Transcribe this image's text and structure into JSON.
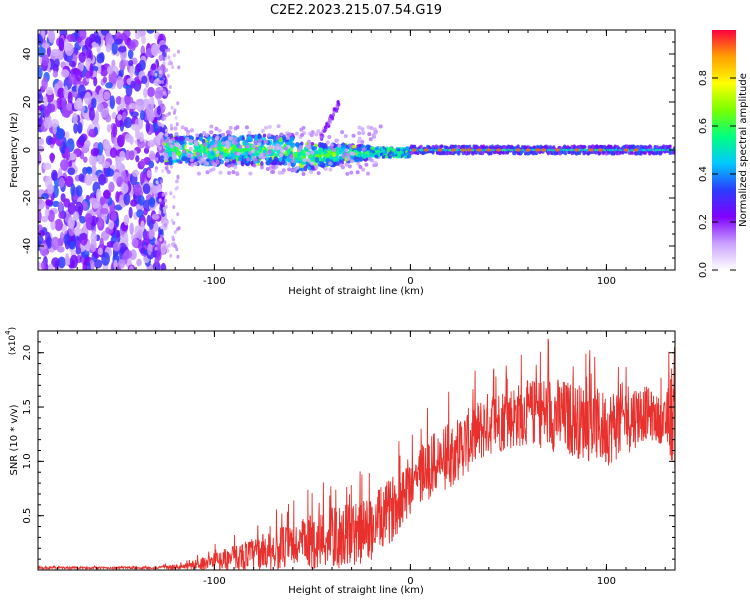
{
  "figure_title": "C2E2.2023.215.07.54.G19",
  "colors": {
    "snr_line": "#e8302c",
    "axis": "#000000"
  },
  "chart_data": [
    {
      "type": "heatmap",
      "name": "spectrogram",
      "title": "C2E2.2023.215.07.54.G19",
      "xlabel": "Height of straight line (km)",
      "ylabel": "Frequency (Hz)",
      "xlim": [
        -190,
        135
      ],
      "ylim": [
        -50,
        50
      ],
      "x_ticks": [
        -100,
        0,
        100
      ],
      "y_ticks": [
        -40,
        -20,
        0,
        20,
        40
      ],
      "colorbar": {
        "label": "Normalized spectral amplitude",
        "range": [
          0,
          1
        ],
        "ticks": [
          "0.0",
          "0.2",
          "0.4",
          "0.6",
          "0.8"
        ],
        "colormap": [
          "#ffffff",
          "#c9a0ff",
          "#7f00ff",
          "#2b3dff",
          "#00c8ff",
          "#00ff80",
          "#7aff00",
          "#ffff00",
          "#ffa000",
          "#ff0040"
        ]
      },
      "features": [
        {
          "region": "height < -125 km",
          "description": "broadband noise across all frequencies",
          "amplitude": 0.2
        },
        {
          "region": "-125 to -60 km",
          "description": "band centred near 0 Hz, about +/-6 Hz wide",
          "amplitude": 0.45
        },
        {
          "region": "-60 to -20 km",
          "description": "narrowing band near -3 Hz",
          "amplitude": 0.45
        },
        {
          "region": "-45 to -35 km",
          "description": "short branch rising to about 20 Hz",
          "amplitude": 0.2
        },
        {
          "region": "0 to 135 km",
          "description": "narrow line at about 0 Hz",
          "amplitude": 0.9
        }
      ]
    },
    {
      "type": "line",
      "name": "snr",
      "xlabel": "Height of straight line (km)",
      "ylabel": "SNR (10 * v/v)",
      "y_scale_label": "(x10",
      "y_scale_exp": "4",
      "xlim": [
        -190,
        135
      ],
      "ylim": [
        0,
        2.2
      ],
      "x_ticks": [
        -100,
        0,
        100
      ],
      "y_ticks": [
        "0.5",
        "1.0",
        "1.5",
        "2.0"
      ],
      "y_tick_values": [
        0.5,
        1.0,
        1.5,
        2.0
      ],
      "envelope": {
        "x": [
          -190,
          -130,
          -115,
          -100,
          -80,
          -60,
          -45,
          -30,
          -20,
          -10,
          0,
          10,
          20,
          30,
          40,
          50,
          60,
          70,
          80,
          90,
          100,
          110,
          120,
          130,
          135
        ],
        "center": [
          0.02,
          0.02,
          0.03,
          0.08,
          0.15,
          0.22,
          0.28,
          0.32,
          0.38,
          0.55,
          0.8,
          0.95,
          1.05,
          1.2,
          1.35,
          1.4,
          1.45,
          1.45,
          1.4,
          1.35,
          1.3,
          1.4,
          1.45,
          1.35,
          1.5
        ],
        "spread": [
          0.01,
          0.01,
          0.03,
          0.08,
          0.15,
          0.22,
          0.28,
          0.3,
          0.3,
          0.3,
          0.3,
          0.3,
          0.3,
          0.3,
          0.3,
          0.3,
          0.3,
          0.35,
          0.35,
          0.35,
          0.35,
          0.35,
          0.25,
          0.2,
          0.6
        ]
      }
    }
  ]
}
